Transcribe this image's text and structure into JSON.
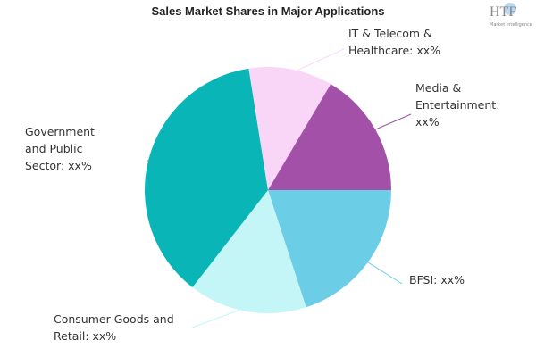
{
  "chart_data": {
    "type": "pie",
    "title": "Sales Market Shares in Major Applications",
    "logo": "HTF",
    "logo_subtitle": "Market Intelligence",
    "categories": [
      [
        "BFSI: xx%"
      ],
      [
        "Consumer Goods and",
        "Retail: xx%"
      ],
      [
        "Government",
        "and Public",
        "Sector: xx%"
      ],
      [
        "IT & Telecom &",
        "Healthcare: xx%"
      ],
      [
        "Media &",
        "Entertainment:",
        "xx%"
      ]
    ],
    "values": [
      20,
      15.5,
      37,
      11,
      16.5
    ],
    "colors": [
      "#6ccde6",
      "#c4f6f8",
      "#0ab5b8",
      "#f9d6f7",
      "#a350a8"
    ]
  }
}
